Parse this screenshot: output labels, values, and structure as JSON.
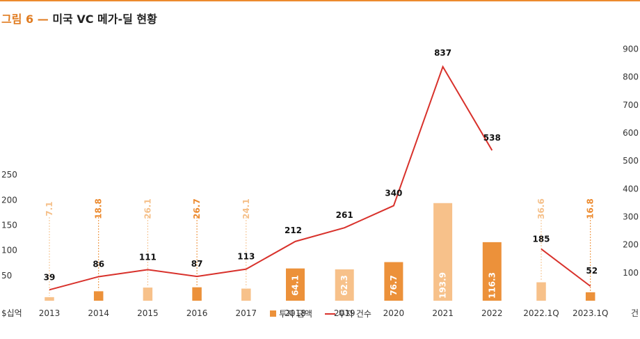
{
  "title": {
    "figure_label": "그림 6",
    "separator": "—",
    "text": "미국 VC 메가-딜 현황"
  },
  "colors": {
    "accent": "#e07b1f",
    "bar_dark": "#ec913a",
    "bar_light": "#f7c18a",
    "line": "#d8312b",
    "label_dark": "#ec8a2e",
    "label_light": "#f5c08a"
  },
  "chart_data": {
    "type": "bar",
    "categories": [
      "2013",
      "2014",
      "2015",
      "2016",
      "2017",
      "2018",
      "2019",
      "2020",
      "2021",
      "2022",
      "2022.1Q",
      "2023.1Q"
    ],
    "left_axis": {
      "unit": "$십억",
      "ticks": [
        50,
        100,
        150,
        200,
        250
      ],
      "range": [
        0,
        250
      ]
    },
    "right_axis": {
      "unit": "건",
      "ticks": [
        100,
        200,
        300,
        400,
        500,
        600,
        700,
        800,
        900
      ],
      "range": [
        0,
        900
      ]
    },
    "series": [
      {
        "name": "투자 금액",
        "axis": "left",
        "kind": "bar",
        "values": [
          7.1,
          18.8,
          26.1,
          26.7,
          24.1,
          64.1,
          62.3,
          76.7,
          193.9,
          116.3,
          36.6,
          16.8
        ],
        "value_labels": [
          "7.1",
          "18.8",
          "26.1",
          "26.7",
          "24.1",
          "64.1",
          "62.3",
          "76.7",
          "193.9",
          "116.3",
          "36.6",
          "16.8"
        ],
        "shade": [
          "light",
          "dark",
          "light",
          "dark",
          "light",
          "dark",
          "light",
          "dark",
          "light",
          "dark",
          "light",
          "dark"
        ]
      },
      {
        "name": "투자 건수",
        "axis": "right",
        "kind": "line",
        "values": [
          39,
          86,
          111,
          87,
          113,
          212,
          261,
          340,
          837,
          538,
          185,
          52
        ],
        "value_labels": [
          "39",
          "86",
          "111",
          "87",
          "113",
          "212",
          "261",
          "340",
          "837",
          "538",
          "185",
          "52"
        ],
        "segments": [
          [
            0,
            9
          ],
          [
            10,
            11
          ]
        ]
      }
    ],
    "legend": {
      "position": "bottom-center"
    }
  }
}
